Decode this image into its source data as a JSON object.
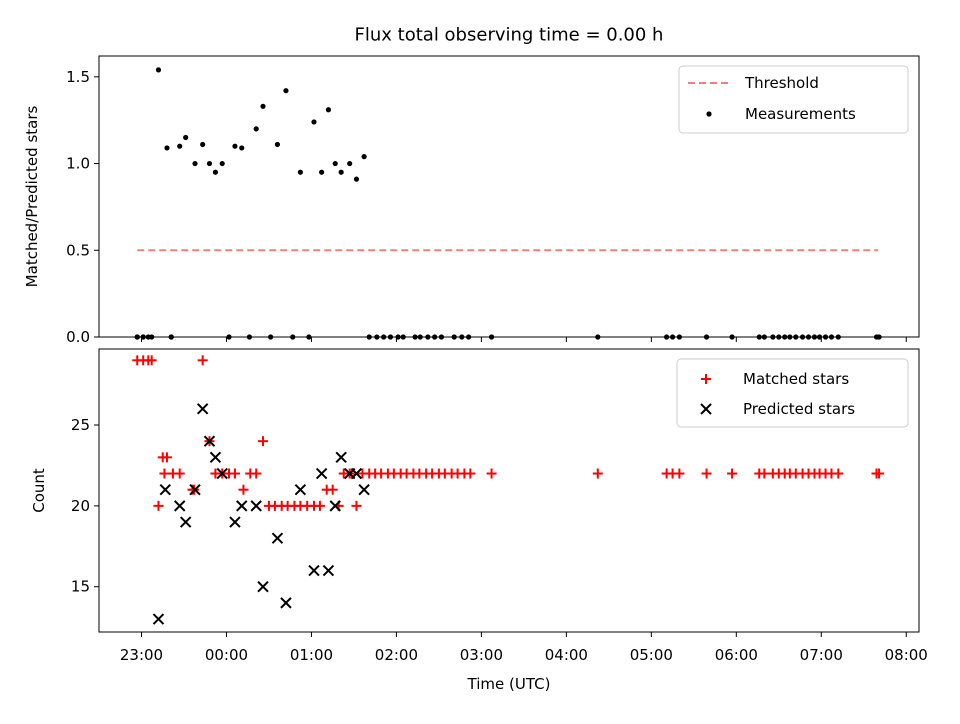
{
  "chart_data": [
    {
      "type": "scatter",
      "title": "Flux total observing time = 0.00 h",
      "xlabel": "",
      "ylabel": "Matched/Predicted stars",
      "xlim": [
        22.5,
        32.15
      ],
      "ylim": [
        0,
        1.62
      ],
      "yticks": [
        0.0,
        0.5,
        1.0,
        1.5
      ],
      "ytick_labels": [
        "0.0",
        "0.5",
        "1.0",
        "1.5"
      ],
      "legend_placement": "top-right",
      "threshold": {
        "name": "Threshold",
        "y": 0.5,
        "x": [
          22.95,
          31.67
        ],
        "color": "#f08080"
      },
      "series": [
        {
          "name": "Measurements",
          "color": "#000000",
          "x": [
            22.95,
            23.02,
            23.08,
            23.35,
            23.2,
            23.3,
            23.45,
            23.52,
            23.63,
            23.72,
            23.8,
            23.87,
            23.95,
            24.1,
            24.18,
            24.35,
            24.43,
            24.6,
            24.7,
            24.87,
            25.03,
            25.12,
            25.2,
            25.28,
            25.35,
            25.45,
            25.53,
            25.62,
            22.95,
            23.02,
            23.12,
            23.35,
            24.03,
            24.27,
            24.52,
            24.78,
            24.97,
            25.68,
            25.77,
            25.85,
            25.93,
            26.02,
            26.08,
            26.22,
            26.28,
            26.37,
            26.45,
            26.53,
            26.68,
            26.77,
            26.85,
            27.12,
            28.37,
            29.18,
            29.25,
            29.33,
            29.65,
            29.95,
            30.27,
            30.33,
            30.43,
            30.5,
            30.57,
            30.63,
            30.7,
            30.78,
            30.85,
            30.92,
            30.98,
            31.05,
            31.12,
            31.2,
            31.65,
            31.68
          ],
          "y": [
            0,
            0,
            0,
            0,
            1.54,
            1.09,
            1.1,
            1.15,
            1.0,
            1.11,
            1.0,
            0.95,
            1.0,
            1.1,
            1.09,
            1.2,
            1.33,
            1.11,
            1.42,
            0.95,
            1.24,
            0.95,
            1.31,
            1.0,
            0.95,
            1.0,
            0.91,
            1.04,
            0,
            0,
            0,
            0,
            0,
            0,
            0,
            0,
            0,
            0,
            0,
            0,
            0,
            0,
            0,
            0,
            0,
            0,
            0,
            0,
            0,
            0,
            0,
            0,
            0,
            0,
            0,
            0,
            0,
            0,
            0,
            0,
            0,
            0,
            0,
            0,
            0,
            0,
            0,
            0,
            0,
            0,
            0,
            0,
            0,
            0
          ]
        }
      ]
    },
    {
      "type": "scatter",
      "title": "",
      "xlabel": "Time (UTC)",
      "ylabel": "Count",
      "xlim": [
        22.5,
        32.15
      ],
      "ylim": [
        12.2,
        29.7
      ],
      "yticks": [
        15,
        20,
        25
      ],
      "ytick_labels": [
        "15",
        "20",
        "25"
      ],
      "xticks": [
        23,
        24,
        25,
        26,
        27,
        28,
        29,
        30,
        31,
        32
      ],
      "xtick_labels": [
        "23:00",
        "00:00",
        "01:00",
        "02:00",
        "03:00",
        "04:00",
        "05:00",
        "06:00",
        "07:00",
        "08:00"
      ],
      "legend_placement": "top-right",
      "series": [
        {
          "name": "Matched stars",
          "marker": "plus",
          "color": "#ff0000",
          "x": [
            22.95,
            23.02,
            23.08,
            23.12,
            23.2,
            23.25,
            23.3,
            23.27,
            23.37,
            23.45,
            23.6,
            23.62,
            23.72,
            23.8,
            23.87,
            23.95,
            24.03,
            24.1,
            24.2,
            24.28,
            24.35,
            24.43,
            24.5,
            24.57,
            24.65,
            24.72,
            24.8,
            24.87,
            24.95,
            25.03,
            25.1,
            25.18,
            25.25,
            25.32,
            25.38,
            25.45,
            25.53,
            25.6,
            25.68,
            25.75,
            25.82,
            25.9,
            25.97,
            26.05,
            26.12,
            26.2,
            26.27,
            26.35,
            26.42,
            26.5,
            26.57,
            26.65,
            26.72,
            26.8,
            26.87,
            27.12,
            28.37,
            29.18,
            29.25,
            29.33,
            29.65,
            29.95,
            30.27,
            30.33,
            30.43,
            30.5,
            30.57,
            30.63,
            30.7,
            30.78,
            30.85,
            30.92,
            30.98,
            31.05,
            31.12,
            31.2,
            31.65,
            31.68
          ],
          "y": [
            29,
            29,
            29,
            29,
            20,
            23,
            23,
            22,
            22,
            22,
            21,
            21,
            29,
            24,
            22,
            22,
            22,
            22,
            21,
            22,
            22,
            24,
            20,
            20,
            20,
            20,
            20,
            20,
            20,
            20,
            20,
            21,
            21,
            20,
            22,
            22,
            20,
            22,
            22,
            22,
            22,
            22,
            22,
            22,
            22,
            22,
            22,
            22,
            22,
            22,
            22,
            22,
            22,
            22,
            22,
            22,
            22,
            22,
            22,
            22,
            22,
            22,
            22,
            22,
            22,
            22,
            22,
            22,
            22,
            22,
            22,
            22,
            22,
            22,
            22,
            22,
            22,
            22
          ]
        },
        {
          "name": "Predicted stars",
          "marker": "x",
          "color": "#000000",
          "x": [
            23.2,
            23.28,
            23.45,
            23.52,
            23.63,
            23.72,
            23.8,
            23.87,
            23.95,
            24.1,
            24.18,
            24.35,
            24.43,
            24.6,
            24.7,
            24.87,
            25.03,
            25.12,
            25.2,
            25.28,
            25.35,
            25.45,
            25.53,
            25.62
          ],
          "y": [
            13,
            21,
            20,
            19,
            21,
            26,
            24,
            23,
            22,
            19,
            20,
            20,
            15,
            18,
            14,
            21,
            16,
            22,
            16,
            20,
            23,
            22,
            22,
            21
          ]
        }
      ]
    }
  ]
}
